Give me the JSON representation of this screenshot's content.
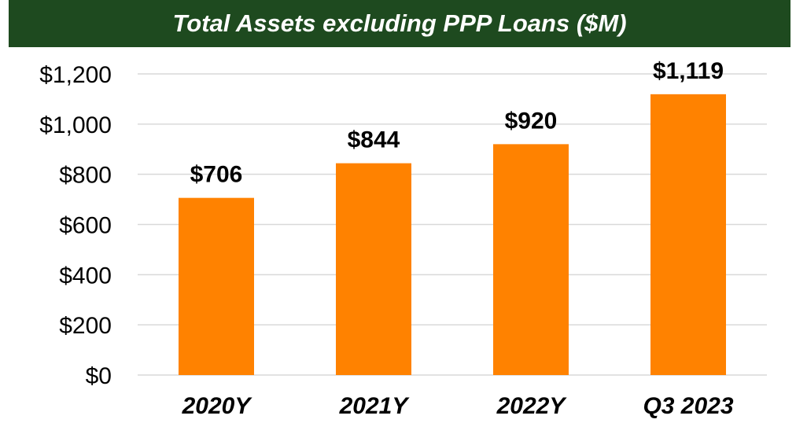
{
  "colors": {
    "title_bg": "#1e4a1f",
    "bar": "#ff8200",
    "grid": "#d9d9d9",
    "text": "#000000"
  },
  "chart_data": {
    "type": "bar",
    "title": "Total Assets excluding PPP Loans ($M)",
    "categories": [
      "2020Y",
      "2021Y",
      "2022Y",
      "Q3 2023"
    ],
    "values": [
      706,
      844,
      920,
      1119
    ],
    "data_labels": [
      "$706",
      "$844",
      "$920",
      "$1,119"
    ],
    "ylim": [
      0,
      1200
    ],
    "yticks": [
      0,
      200,
      400,
      600,
      800,
      1000,
      1200
    ],
    "ytick_labels": [
      "$0",
      "$200",
      "$400",
      "$600",
      "$800",
      "$1,000",
      "$1,200"
    ],
    "grid": true,
    "legend": false
  }
}
